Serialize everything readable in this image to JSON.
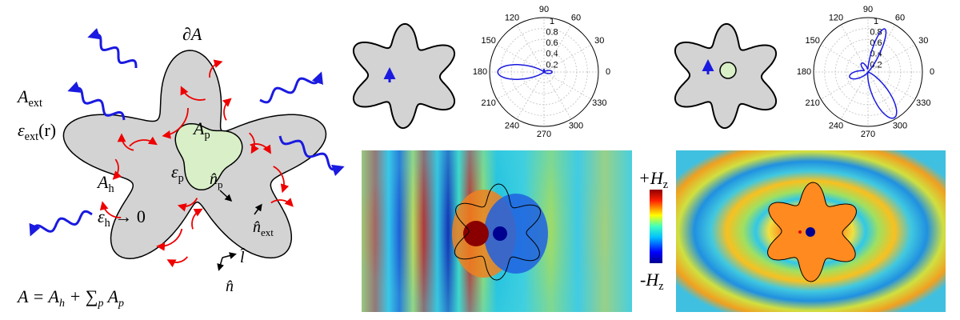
{
  "schematic": {
    "boundary": "∂A",
    "a_ext": {
      "base": "A",
      "sub": "ext"
    },
    "eps_ext": {
      "base": "ε",
      "sub": "ext",
      "tail": "(r)"
    },
    "a_p": {
      "base": "A",
      "sub": "p"
    },
    "eps_p": {
      "base": "ε",
      "sub": "p"
    },
    "n_p": {
      "base": "n̂",
      "sub": "p"
    },
    "a_h": {
      "base": "A",
      "sub": "h"
    },
    "eps_h": {
      "base": "ε",
      "sub": "h",
      "tail": " → 0"
    },
    "n_ext": {
      "base": "n̂",
      "sub": "ext"
    },
    "l_hat": {
      "base": "l̂"
    },
    "n_hat": {
      "base": "n̂"
    },
    "formula": [
      {
        "text": "A = A"
      },
      {
        "sub": "h"
      },
      {
        "text": " + ∑"
      },
      {
        "sub": "p"
      },
      {
        "text": " A"
      },
      {
        "sub": "p"
      }
    ]
  },
  "polar_plots": [
    {
      "angles": [
        "0",
        "30",
        "60",
        "90",
        "120",
        "150",
        "180",
        "210",
        "240",
        "270",
        "300",
        "330"
      ],
      "radii": [
        "0.2",
        "0.4",
        "0.6",
        "0.8",
        "1"
      ]
    },
    {
      "angles": [
        "0",
        "30",
        "60",
        "90",
        "120",
        "150",
        "180",
        "210",
        "240",
        "270",
        "300",
        "330"
      ],
      "radii": [
        "0.2",
        "0.4",
        "0.6",
        "0.8",
        "1"
      ]
    }
  ],
  "colorbar": {
    "top": {
      "base": "+H",
      "sub": "z"
    },
    "bottom": {
      "base": "-H",
      "sub": "z"
    }
  }
}
